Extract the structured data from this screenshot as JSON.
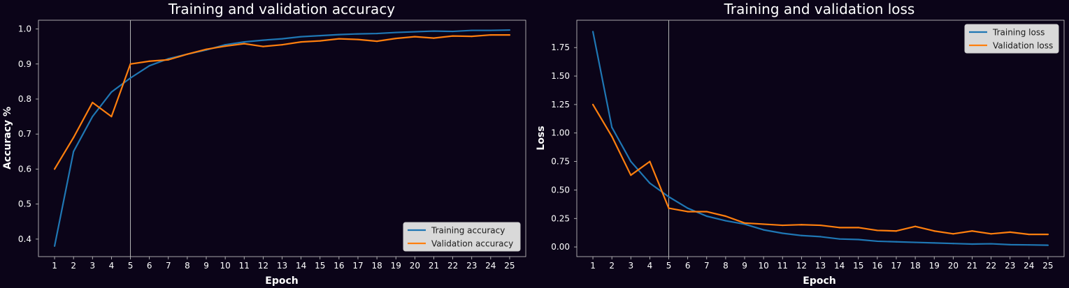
{
  "figure": {
    "background": "#0b0418",
    "text_color": "#ffffff",
    "axes_frame_color": "#cfcfcf"
  },
  "chart_data": [
    {
      "type": "line",
      "title": "Training and validation accuracy",
      "xlabel": "Epoch",
      "ylabel": "Accuracy %",
      "x": [
        1,
        2,
        3,
        4,
        5,
        6,
        7,
        8,
        9,
        10,
        11,
        12,
        13,
        14,
        15,
        16,
        17,
        18,
        19,
        20,
        21,
        22,
        23,
        24,
        25
      ],
      "xlim": [
        0.15,
        25.85
      ],
      "ylim": [
        0.35,
        1.025
      ],
      "yticks": [
        0.4,
        0.5,
        0.6,
        0.7,
        0.8,
        0.9,
        1.0
      ],
      "ytick_labels": [
        "0.4",
        "0.5",
        "0.6",
        "0.7",
        "0.8",
        "0.9",
        "1.0"
      ],
      "vline_x": 5,
      "grid": false,
      "legend_position": "lower-right",
      "series": [
        {
          "name": "Training accuracy",
          "color": "#1f77b4",
          "values": [
            0.38,
            0.65,
            0.75,
            0.82,
            0.86,
            0.895,
            0.915,
            0.928,
            0.94,
            0.955,
            0.963,
            0.968,
            0.972,
            0.978,
            0.981,
            0.984,
            0.986,
            0.987,
            0.99,
            0.992,
            0.994,
            0.993,
            0.996,
            0.996,
            0.997
          ]
        },
        {
          "name": "Validation accuracy",
          "color": "#ff7f0e",
          "values": [
            0.6,
            0.69,
            0.79,
            0.75,
            0.9,
            0.908,
            0.912,
            0.928,
            0.942,
            0.951,
            0.958,
            0.95,
            0.955,
            0.963,
            0.966,
            0.972,
            0.97,
            0.965,
            0.973,
            0.978,
            0.974,
            0.98,
            0.979,
            0.983,
            0.983
          ]
        }
      ]
    },
    {
      "type": "line",
      "title": "Training and validation loss",
      "xlabel": "Epoch",
      "ylabel": "Loss",
      "x": [
        1,
        2,
        3,
        4,
        5,
        6,
        7,
        8,
        9,
        10,
        11,
        12,
        13,
        14,
        15,
        16,
        17,
        18,
        19,
        20,
        21,
        22,
        23,
        24,
        25
      ],
      "xlim": [
        0.15,
        25.85
      ],
      "ylim": [
        -0.085,
        1.99
      ],
      "yticks": [
        0.0,
        0.25,
        0.5,
        0.75,
        1.0,
        1.25,
        1.5,
        1.75
      ],
      "ytick_labels": [
        "0.00",
        "0.25",
        "0.50",
        "0.75",
        "1.00",
        "1.25",
        "1.50",
        "1.75"
      ],
      "vline_x": 5,
      "grid": false,
      "legend_position": "upper-right",
      "series": [
        {
          "name": "Training loss",
          "color": "#1f77b4",
          "values": [
            1.89,
            1.05,
            0.75,
            0.56,
            0.44,
            0.34,
            0.27,
            0.23,
            0.2,
            0.15,
            0.12,
            0.1,
            0.09,
            0.07,
            0.065,
            0.05,
            0.045,
            0.04,
            0.035,
            0.03,
            0.025,
            0.028,
            0.02,
            0.018,
            0.015
          ]
        },
        {
          "name": "Validation loss",
          "color": "#ff7f0e",
          "values": [
            1.25,
            0.97,
            0.63,
            0.75,
            0.34,
            0.31,
            0.31,
            0.27,
            0.21,
            0.2,
            0.19,
            0.195,
            0.19,
            0.17,
            0.17,
            0.145,
            0.14,
            0.18,
            0.14,
            0.115,
            0.14,
            0.115,
            0.13,
            0.11,
            0.11
          ]
        }
      ]
    }
  ]
}
